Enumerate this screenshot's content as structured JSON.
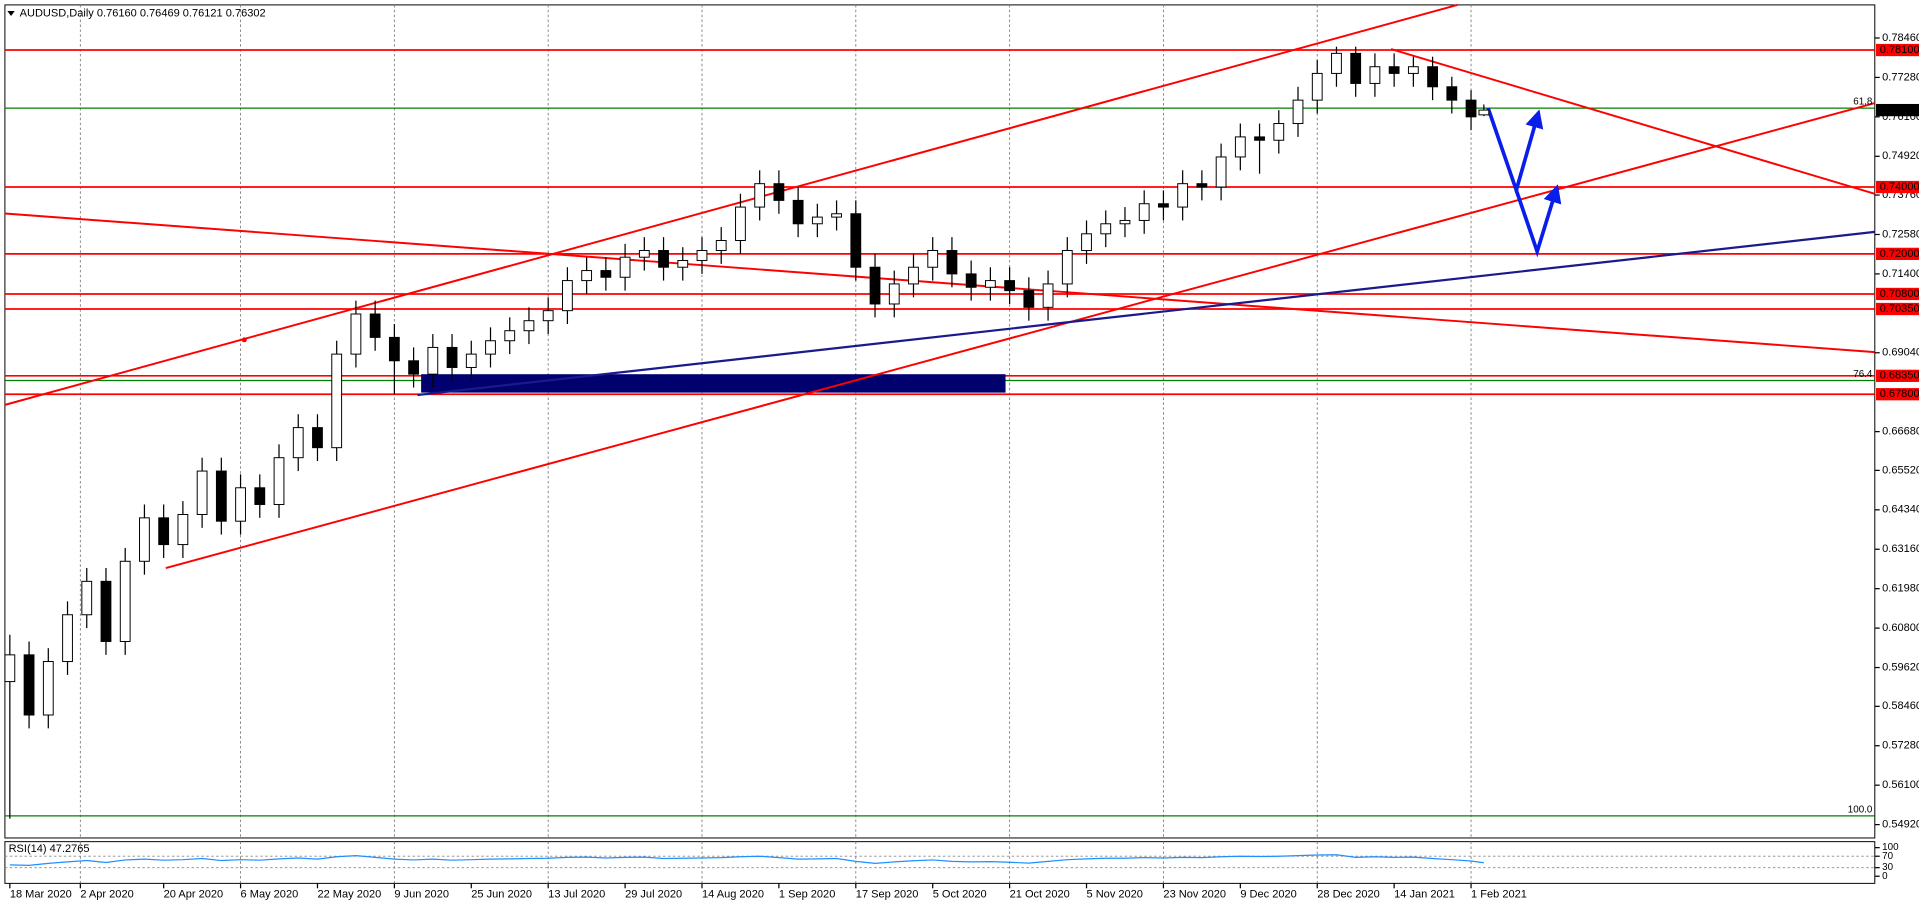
{
  "chart_data": [
    {
      "type": "candlestick",
      "title": "AUDUSD,Daily  0.76160 0.76469 0.76121 0.76302",
      "xlim": [
        -0.77,
        291
      ],
      "ylim": [
        0.5452,
        0.7945
      ],
      "xticks": [
        {
          "value": 0,
          "label": "18 Mar 2020"
        },
        {
          "value": 11,
          "label": "2 Apr 2020"
        },
        {
          "value": 24,
          "label": "20 Apr 2020"
        },
        {
          "value": 36,
          "label": "6 May 2020"
        },
        {
          "value": 48,
          "label": "22 May 2020"
        },
        {
          "value": 60,
          "label": "9 Jun 2020"
        },
        {
          "value": 72,
          "label": "25 Jun 2020"
        },
        {
          "value": 84,
          "label": "13 Jul 2020"
        },
        {
          "value": 96,
          "label": "29 Jul 2020"
        },
        {
          "value": 108,
          "label": "14 Aug 2020"
        },
        {
          "value": 120,
          "label": "1 Sep 2020"
        },
        {
          "value": 132,
          "label": "17 Sep 2020"
        },
        {
          "value": 144,
          "label": "5 Oct 2020"
        },
        {
          "value": 156,
          "label": "21 Oct 2020"
        },
        {
          "value": 168,
          "label": "5 Nov 2020"
        },
        {
          "value": 180,
          "label": "23 Nov 2020"
        },
        {
          "value": 192,
          "label": "9 Dec 2020"
        },
        {
          "value": 204,
          "label": "28 Dec 2020"
        },
        {
          "value": 216,
          "label": "14 Jan 2021"
        },
        {
          "value": 228,
          "label": "1 Feb 2021"
        }
      ],
      "yticks": [
        {
          "value": 0.7846,
          "label": "0.78460"
        },
        {
          "value": 0.7728,
          "label": "0.77280"
        },
        {
          "value": 0.761,
          "label": "0.76100"
        },
        {
          "value": 0.7492,
          "label": "0.74920"
        },
        {
          "value": 0.7376,
          "label": "0.73760"
        },
        {
          "value": 0.7258,
          "label": "0.72580"
        },
        {
          "value": 0.714,
          "label": "0.71400"
        },
        {
          "value": 0.6904,
          "label": "0.69040"
        },
        {
          "value": 0.6668,
          "label": "0.66680"
        },
        {
          "value": 0.6552,
          "label": "0.65520"
        },
        {
          "value": 0.6434,
          "label": "0.64340"
        },
        {
          "value": 0.6316,
          "label": "0.63160"
        },
        {
          "value": 0.6198,
          "label": "0.61980"
        },
        {
          "value": 0.608,
          "label": "0.60800"
        },
        {
          "value": 0.5962,
          "label": "0.59620"
        },
        {
          "value": 0.5846,
          "label": "0.58460"
        },
        {
          "value": 0.5728,
          "label": "0.57280"
        },
        {
          "value": 0.561,
          "label": "0.56100"
        },
        {
          "value": 0.5492,
          "label": "0.54920"
        }
      ],
      "levels": [
        {
          "value": 0.781,
          "label": "0.78100"
        },
        {
          "value": 0.74,
          "label": "0.74000"
        },
        {
          "value": 0.72,
          "label": "0.72000"
        },
        {
          "value": 0.708,
          "label": "0.70800"
        },
        {
          "value": 0.7035,
          "label": "0.70350"
        },
        {
          "value": 0.6835,
          "label": "0.68350"
        },
        {
          "value": 0.678,
          "label": "0.67800"
        }
      ],
      "level_color": "#ff0000",
      "fib_levels": [
        {
          "value": 0.7636,
          "label": "61.8"
        },
        {
          "value": 0.6821,
          "label": "76.4"
        },
        {
          "value": 0.5518,
          "label": "100.0"
        }
      ],
      "fib_color": "#008000",
      "last_price": {
        "value": 0.76302,
        "label": "0.76302"
      },
      "grid": true,
      "candles": [
        {
          "x": 0,
          "open": 0.592,
          "high": 0.606,
          "low": 0.551,
          "close": 0.6
        },
        {
          "x": 3,
          "open": 0.6,
          "high": 0.604,
          "low": 0.578,
          "close": 0.582
        },
        {
          "x": 6,
          "open": 0.582,
          "high": 0.602,
          "low": 0.578,
          "close": 0.598
        },
        {
          "x": 9,
          "open": 0.598,
          "high": 0.616,
          "low": 0.594,
          "close": 0.612
        },
        {
          "x": 12,
          "open": 0.612,
          "high": 0.626,
          "low": 0.608,
          "close": 0.622
        },
        {
          "x": 15,
          "open": 0.622,
          "high": 0.626,
          "low": 0.6,
          "close": 0.604
        },
        {
          "x": 18,
          "open": 0.604,
          "high": 0.632,
          "low": 0.6,
          "close": 0.628
        },
        {
          "x": 21,
          "open": 0.628,
          "high": 0.645,
          "low": 0.624,
          "close": 0.641
        },
        {
          "x": 24,
          "open": 0.641,
          "high": 0.645,
          "low": 0.629,
          "close": 0.633
        },
        {
          "x": 27,
          "open": 0.633,
          "high": 0.646,
          "low": 0.629,
          "close": 0.642
        },
        {
          "x": 30,
          "open": 0.642,
          "high": 0.659,
          "low": 0.638,
          "close": 0.655
        },
        {
          "x": 33,
          "open": 0.655,
          "high": 0.659,
          "low": 0.636,
          "close": 0.64
        },
        {
          "x": 36,
          "open": 0.64,
          "high": 0.654,
          "low": 0.636,
          "close": 0.65
        },
        {
          "x": 39,
          "open": 0.65,
          "high": 0.654,
          "low": 0.641,
          "close": 0.645
        },
        {
          "x": 42,
          "open": 0.645,
          "high": 0.663,
          "low": 0.641,
          "close": 0.659
        },
        {
          "x": 45,
          "open": 0.659,
          "high": 0.672,
          "low": 0.655,
          "close": 0.668
        },
        {
          "x": 48,
          "open": 0.668,
          "high": 0.672,
          "low": 0.658,
          "close": 0.662
        },
        {
          "x": 51,
          "open": 0.662,
          "high": 0.694,
          "low": 0.658,
          "close": 0.69
        },
        {
          "x": 54,
          "open": 0.69,
          "high": 0.706,
          "low": 0.686,
          "close": 0.702
        },
        {
          "x": 57,
          "open": 0.702,
          "high": 0.706,
          "low": 0.691,
          "close": 0.695
        },
        {
          "x": 60,
          "open": 0.695,
          "high": 0.699,
          "low": 0.678,
          "close": 0.688
        },
        {
          "x": 63,
          "open": 0.688,
          "high": 0.692,
          "low": 0.68,
          "close": 0.684
        },
        {
          "x": 66,
          "open": 0.684,
          "high": 0.696,
          "low": 0.68,
          "close": 0.692
        },
        {
          "x": 69,
          "open": 0.692,
          "high": 0.696,
          "low": 0.682,
          "close": 0.686
        },
        {
          "x": 72,
          "open": 0.686,
          "high": 0.694,
          "low": 0.682,
          "close": 0.69
        },
        {
          "x": 75,
          "open": 0.69,
          "high": 0.698,
          "low": 0.686,
          "close": 0.694
        },
        {
          "x": 78,
          "open": 0.694,
          "high": 0.701,
          "low": 0.69,
          "close": 0.697
        },
        {
          "x": 81,
          "open": 0.697,
          "high": 0.704,
          "low": 0.693,
          "close": 0.7
        },
        {
          "x": 84,
          "open": 0.7,
          "high": 0.707,
          "low": 0.696,
          "close": 0.703
        },
        {
          "x": 87,
          "open": 0.703,
          "high": 0.716,
          "low": 0.699,
          "close": 0.712
        },
        {
          "x": 90,
          "open": 0.712,
          "high": 0.719,
          "low": 0.708,
          "close": 0.715
        },
        {
          "x": 93,
          "open": 0.715,
          "high": 0.719,
          "low": 0.709,
          "close": 0.713
        },
        {
          "x": 96,
          "open": 0.713,
          "high": 0.723,
          "low": 0.709,
          "close": 0.719
        },
        {
          "x": 99,
          "open": 0.719,
          "high": 0.725,
          "low": 0.715,
          "close": 0.721
        },
        {
          "x": 102,
          "open": 0.721,
          "high": 0.725,
          "low": 0.712,
          "close": 0.716
        },
        {
          "x": 105,
          "open": 0.716,
          "high": 0.722,
          "low": 0.712,
          "close": 0.718
        },
        {
          "x": 108,
          "open": 0.718,
          "high": 0.725,
          "low": 0.714,
          "close": 0.721
        },
        {
          "x": 111,
          "open": 0.721,
          "high": 0.728,
          "low": 0.717,
          "close": 0.724
        },
        {
          "x": 114,
          "open": 0.724,
          "high": 0.738,
          "low": 0.72,
          "close": 0.734
        },
        {
          "x": 117,
          "open": 0.734,
          "high": 0.745,
          "low": 0.73,
          "close": 0.741
        },
        {
          "x": 120,
          "open": 0.741,
          "high": 0.745,
          "low": 0.732,
          "close": 0.736
        },
        {
          "x": 123,
          "open": 0.736,
          "high": 0.74,
          "low": 0.725,
          "close": 0.729
        },
        {
          "x": 126,
          "open": 0.729,
          "high": 0.735,
          "low": 0.725,
          "close": 0.731
        },
        {
          "x": 129,
          "open": 0.731,
          "high": 0.736,
          "low": 0.727,
          "close": 0.732
        },
        {
          "x": 132,
          "open": 0.732,
          "high": 0.736,
          "low": 0.712,
          "close": 0.716
        },
        {
          "x": 135,
          "open": 0.716,
          "high": 0.72,
          "low": 0.701,
          "close": 0.705
        },
        {
          "x": 138,
          "open": 0.705,
          "high": 0.715,
          "low": 0.701,
          "close": 0.711
        },
        {
          "x": 141,
          "open": 0.711,
          "high": 0.72,
          "low": 0.707,
          "close": 0.716
        },
        {
          "x": 144,
          "open": 0.716,
          "high": 0.725,
          "low": 0.712,
          "close": 0.721
        },
        {
          "x": 147,
          "open": 0.721,
          "high": 0.725,
          "low": 0.71,
          "close": 0.714
        },
        {
          "x": 150,
          "open": 0.714,
          "high": 0.718,
          "low": 0.706,
          "close": 0.71
        },
        {
          "x": 153,
          "open": 0.71,
          "high": 0.716,
          "low": 0.706,
          "close": 0.712
        },
        {
          "x": 156,
          "open": 0.712,
          "high": 0.716,
          "low": 0.705,
          "close": 0.709
        },
        {
          "x": 159,
          "open": 0.709,
          "high": 0.713,
          "low": 0.7,
          "close": 0.704
        },
        {
          "x": 162,
          "open": 0.704,
          "high": 0.715,
          "low": 0.7,
          "close": 0.711
        },
        {
          "x": 165,
          "open": 0.711,
          "high": 0.725,
          "low": 0.707,
          "close": 0.721
        },
        {
          "x": 168,
          "open": 0.721,
          "high": 0.73,
          "low": 0.717,
          "close": 0.726
        },
        {
          "x": 171,
          "open": 0.726,
          "high": 0.733,
          "low": 0.722,
          "close": 0.729
        },
        {
          "x": 174,
          "open": 0.729,
          "high": 0.734,
          "low": 0.725,
          "close": 0.73
        },
        {
          "x": 177,
          "open": 0.73,
          "high": 0.739,
          "low": 0.726,
          "close": 0.735
        },
        {
          "x": 180,
          "open": 0.735,
          "high": 0.739,
          "low": 0.73,
          "close": 0.734
        },
        {
          "x": 183,
          "open": 0.734,
          "high": 0.745,
          "low": 0.73,
          "close": 0.741
        },
        {
          "x": 186,
          "open": 0.741,
          "high": 0.745,
          "low": 0.736,
          "close": 0.74
        },
        {
          "x": 189,
          "open": 0.74,
          "high": 0.753,
          "low": 0.736,
          "close": 0.749
        },
        {
          "x": 192,
          "open": 0.749,
          "high": 0.759,
          "low": 0.745,
          "close": 0.755
        },
        {
          "x": 195,
          "open": 0.755,
          "high": 0.759,
          "low": 0.744,
          "close": 0.754
        },
        {
          "x": 198,
          "open": 0.754,
          "high": 0.763,
          "low": 0.75,
          "close": 0.759
        },
        {
          "x": 201,
          "open": 0.759,
          "high": 0.77,
          "low": 0.755,
          "close": 0.766
        },
        {
          "x": 204,
          "open": 0.766,
          "high": 0.778,
          "low": 0.762,
          "close": 0.774
        },
        {
          "x": 207,
          "open": 0.774,
          "high": 0.782,
          "low": 0.77,
          "close": 0.78
        },
        {
          "x": 210,
          "open": 0.78,
          "high": 0.782,
          "low": 0.767,
          "close": 0.771
        },
        {
          "x": 213,
          "open": 0.771,
          "high": 0.78,
          "low": 0.767,
          "close": 0.776
        },
        {
          "x": 216,
          "open": 0.776,
          "high": 0.78,
          "low": 0.77,
          "close": 0.774
        },
        {
          "x": 219,
          "open": 0.774,
          "high": 0.779,
          "low": 0.77,
          "close": 0.776
        },
        {
          "x": 222,
          "open": 0.776,
          "high": 0.779,
          "low": 0.766,
          "close": 0.77
        },
        {
          "x": 225,
          "open": 0.77,
          "high": 0.773,
          "low": 0.762,
          "close": 0.766
        },
        {
          "x": 228,
          "open": 0.766,
          "high": 0.769,
          "low": 0.757,
          "close": 0.761
        },
        {
          "x": 230,
          "open": 0.7616,
          "high": 0.76469,
          "low": 0.76121,
          "close": 0.76302
        }
      ]
    },
    {
      "type": "line",
      "title": "RSI(14) 47.2765",
      "color": "#1e90ff",
      "xlim": [
        -0.77,
        291
      ],
      "ylim": [
        -25,
        121
      ],
      "yticks": [
        100,
        70,
        30,
        0
      ],
      "x": [
        0,
        3,
        6,
        9,
        12,
        15,
        18,
        21,
        24,
        27,
        30,
        33,
        36,
        39,
        42,
        45,
        48,
        51,
        54,
        57,
        60,
        63,
        66,
        69,
        72,
        75,
        78,
        81,
        84,
        87,
        90,
        93,
        96,
        99,
        102,
        105,
        108,
        111,
        114,
        117,
        120,
        123,
        126,
        129,
        132,
        135,
        138,
        141,
        144,
        147,
        150,
        153,
        156,
        159,
        162,
        165,
        168,
        171,
        174,
        177,
        180,
        183,
        186,
        189,
        192,
        195,
        198,
        201,
        204,
        207,
        210,
        213,
        216,
        219,
        222,
        225,
        228,
        230
      ],
      "values": [
        40,
        38,
        45,
        50,
        55,
        48,
        57,
        60,
        56,
        58,
        62,
        55,
        58,
        56,
        61,
        64,
        60,
        68,
        72,
        66,
        60,
        57,
        60,
        56,
        58,
        60,
        61,
        62,
        63,
        66,
        67,
        64,
        66,
        67,
        62,
        63,
        64,
        65,
        68,
        70,
        65,
        60,
        61,
        62,
        52,
        45,
        50,
        54,
        57,
        52,
        50,
        51,
        49,
        46,
        52,
        58,
        61,
        63,
        63,
        65,
        64,
        66,
        65,
        68,
        70,
        69,
        70,
        72,
        74,
        75,
        66,
        68,
        66,
        67,
        62,
        58,
        53,
        47.2765
      ]
    }
  ]
}
